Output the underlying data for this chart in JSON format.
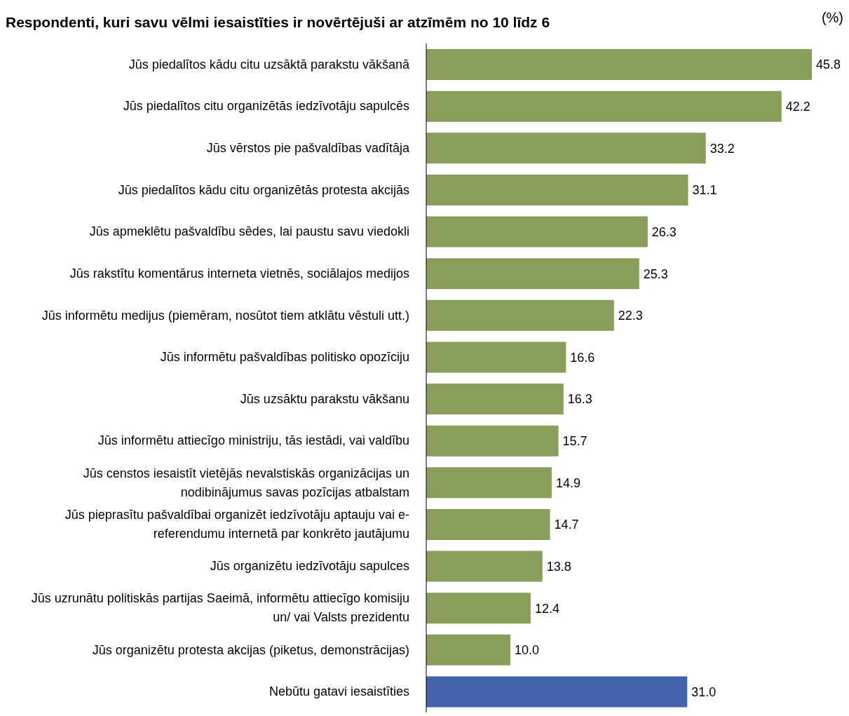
{
  "chart_data": {
    "type": "bar",
    "orientation": "horizontal",
    "title": "Respondenti, kuri savu vēlmi iesaistīties ir novērtējuši ar atzīmēm no 10 līdz 6",
    "annotations": [
      "(%)"
    ],
    "categories": [
      "Jūs piedalītos kādu citu uzsāktā parakstu vākšanā",
      "Jūs piedalītos citu organizētās iedzīvotāju sapulcēs",
      "Jūs vērstos pie pašvaldības vadītāja",
      "Jūs piedalītos kādu citu organizētās protesta akcijās",
      "Jūs apmeklētu pašvaldību sēdes, lai paustu savu viedokli",
      "Jūs rakstītu komentārus interneta vietnēs, sociālajos medijos",
      "Jūs informētu medijus (piemēram, nosūtot tiem atklātu vēstuli utt.)",
      "Jūs informētu pašvaldības politisko opozīciju",
      "Jūs uzsāktu parakstu vākšanu",
      "Jūs informētu attiecīgo ministriju, tās iestādi,  vai valdību",
      "Jūs censtos iesaistīt vietējās nevalstiskās organizācijas un nodibinājumus savas pozīcijas atbalstam",
      "Jūs pieprasītu pašvaldībai organizēt iedzīvotāju aptauju vai e-referendumu internetā par konkrēto jautājumu",
      "Jūs organizētu iedzīvotāju sapulces",
      "Jūs uzrunātu politiskās partijas Saeimā, informētu attiecīgo komisiju un/ vai Valsts prezidentu",
      "Jūs organizētu protesta akcijas (piketus, demonstrācijas)",
      "Nebūtu gatavi iesaistīties"
    ],
    "values": [
      45.8,
      42.2,
      33.2,
      31.1,
      26.3,
      25.3,
      22.3,
      16.6,
      16.3,
      15.7,
      14.9,
      14.7,
      13.8,
      12.4,
      10.0,
      31.0
    ],
    "value_labels": [
      "45.8",
      "42.2",
      "33.2",
      "31.1",
      "26.3",
      "25.3",
      "22.3",
      "16.6",
      "16.3",
      "15.7",
      "14.9",
      "14.7",
      "13.8",
      "12.4",
      "10.0",
      "31.0"
    ],
    "colors": [
      "#8a9e5b",
      "#8a9e5b",
      "#8a9e5b",
      "#8a9e5b",
      "#8a9e5b",
      "#8a9e5b",
      "#8a9e5b",
      "#8a9e5b",
      "#8a9e5b",
      "#8a9e5b",
      "#8a9e5b",
      "#8a9e5b",
      "#8a9e5b",
      "#8a9e5b",
      "#8a9e5b",
      "#4363ad"
    ],
    "grid": false,
    "legend": false
  }
}
